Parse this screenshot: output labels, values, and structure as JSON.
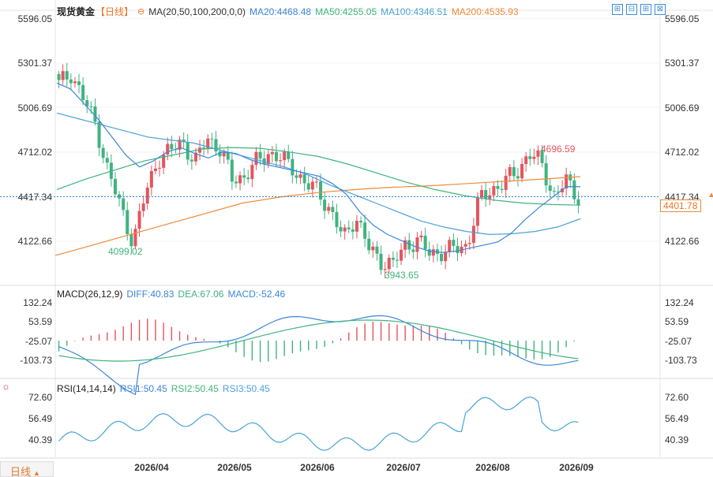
{
  "header": {
    "symbol": "现货黄金",
    "period": "【日线】",
    "ma_label": "MA(20,50,100,200,0,0)",
    "ma20": "MA20:4468.48",
    "ma50": "MA50:4255.05",
    "ma100": "MA100:4346.51",
    "ma200": "MA200:4535.93"
  },
  "toolbar": {
    "btn1": "⊞",
    "btn2": "⊟",
    "btn3": "⊞",
    "btn4": "⊠"
  },
  "price_axis": {
    "ticks": [
      "5596.05",
      "5301.37",
      "5006.69",
      "4712.02",
      "4417.34",
      "4122.66"
    ],
    "current": "4401.78"
  },
  "annotations": {
    "high": "4696.59",
    "low1": "4099.02",
    "low2": "3943.65"
  },
  "macd": {
    "label": "MACD(26,12,9)",
    "diff": "DIFF:40.83",
    "dea": "DEA:67.06",
    "macd": "MACD:-52.46",
    "ticks": [
      "132.24",
      "53.59",
      "-25.07",
      "-103.73"
    ]
  },
  "rsi": {
    "label": "RSI(14,14,14)",
    "rsi1": "RSI1:50.45",
    "rsi2": "RSI2:50.45",
    "rsi3": "RSI3:50.45",
    "ticks": [
      "72.60",
      "56.49",
      "40.39"
    ]
  },
  "footer": {
    "period_tab": "日线"
  },
  "x_labels": [
    "2026/04",
    "2026/05",
    "2026/06",
    "2026/07",
    "2026/08",
    "2026/09"
  ],
  "colors": {
    "up": "#e5545d",
    "down": "#3fb37f",
    "ma20": "#3b86d8",
    "ma50": "#3fb37f",
    "ma100": "#4aa3d6",
    "ma200": "#f08a3a"
  },
  "chart_data": {
    "type": "candlestick",
    "y_range": [
      3900,
      5640
    ],
    "ohlc_anchor_closes": [
      5150,
      5230,
      5050,
      4880,
      4560,
      4330,
      4099,
      4420,
      4660,
      4700,
      4780,
      4620,
      4800,
      4720,
      4520,
      4540,
      4630,
      4700,
      4650,
      4590,
      4480,
      4440,
      4300,
      4120,
      4280,
      4060,
      3980,
      3943,
      4080,
      4110,
      4020,
      4040,
      4050,
      4080,
      4380,
      4450,
      4500,
      4560,
      4696,
      4620,
      4410,
      4500,
      4401
    ],
    "ma20": [
      5160,
      5120,
      5020,
      4920,
      4800,
      4680,
      4600,
      4640,
      4700,
      4730,
      4690,
      4660,
      4700,
      4690,
      4650,
      4620,
      4600,
      4580,
      4560,
      4540,
      4490,
      4420,
      4300,
      4210,
      4150,
      4110,
      4070,
      4040,
      4030,
      4040,
      4060,
      4080,
      4100,
      4160,
      4250,
      4330,
      4400,
      4470,
      4468
    ],
    "ma50": [
      4960,
      4920,
      4880,
      4840,
      4800,
      4780,
      4760,
      4720,
      4680,
      4640,
      4600,
      4550,
      4480,
      4420,
      4360,
      4300,
      4240,
      4200,
      4170,
      4150,
      4155,
      4170,
      4200,
      4255
    ],
    "ma100": [
      4450,
      4520,
      4580,
      4640,
      4680,
      4720,
      4730,
      4725,
      4700,
      4670,
      4620,
      4560,
      4500,
      4450,
      4410,
      4380,
      4360,
      4350,
      4346
    ],
    "ma200": [
      4010,
      4080,
      4150,
      4220,
      4290,
      4360,
      4400,
      4430,
      4450,
      4465,
      4475,
      4490,
      4505,
      4520,
      4536
    ]
  }
}
